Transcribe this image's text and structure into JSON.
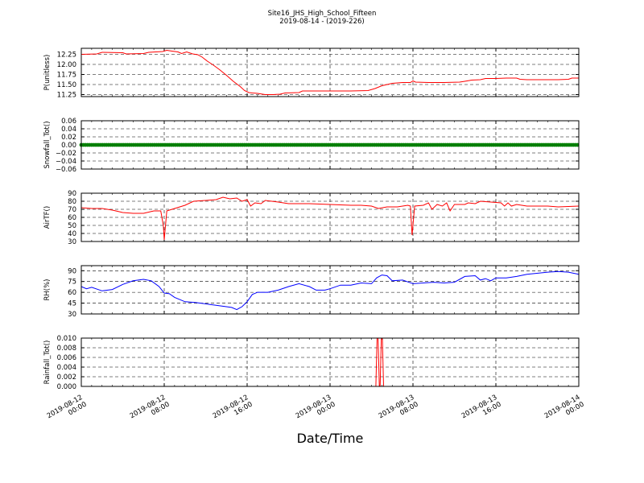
{
  "title": {
    "line1": "Site16_JHS_High_School_Fifteen",
    "line2": "2019-08-14 - (2019-226)"
  },
  "chart_data": {
    "type": "line",
    "xlabel": "Date/Time",
    "xlim": [
      "2019-08-12 00:00",
      "2019-08-14 00:00"
    ],
    "x_ticks": [
      {
        "value": "2019-08-12 00:00",
        "lines": [
          "2019-08-12",
          "00:00"
        ]
      },
      {
        "value": "2019-08-12 08:00",
        "lines": [
          "2019-08-12",
          "08:00"
        ]
      },
      {
        "value": "2019-08-12 16:00",
        "lines": [
          "2019-08-12",
          "16:00"
        ]
      },
      {
        "value": "2019-08-13 00:00",
        "lines": [
          "2019-08-13",
          "00:00"
        ]
      },
      {
        "value": "2019-08-13 08:00",
        "lines": [
          "2019-08-13",
          "08:00"
        ]
      },
      {
        "value": "2019-08-13 16:00",
        "lines": [
          "2019-08-13",
          "16:00"
        ]
      },
      {
        "value": "2019-08-14 00:00",
        "lines": [
          "2019-08-14",
          "00:00"
        ]
      }
    ],
    "grid": true,
    "panels": [
      {
        "ylabel": "P(unitless)",
        "ylim": [
          11.2,
          12.4
        ],
        "yticks": [
          12.25,
          12.0,
          11.75,
          11.5,
          11.25
        ],
        "ytick_labels": [
          "12.25",
          "12.00",
          "11.75",
          "11.50",
          "11.25"
        ],
        "color": "#ff0000",
        "marker": "line",
        "points": [
          [
            "2019-08-12 00:00",
            12.25
          ],
          [
            "2019-08-12 01:30",
            12.26
          ],
          [
            "2019-08-12 02:00",
            12.3
          ],
          [
            "2019-08-12 04:00",
            12.29
          ],
          [
            "2019-08-12 04:20",
            12.26
          ],
          [
            "2019-08-12 06:00",
            12.27
          ],
          [
            "2019-08-12 06:30",
            12.3
          ],
          [
            "2019-08-12 07:50",
            12.32
          ],
          [
            "2019-08-12 08:15",
            12.35
          ],
          [
            "2019-08-12 08:45",
            12.33
          ],
          [
            "2019-08-12 09:20",
            12.31
          ],
          [
            "2019-08-12 09:40",
            12.27
          ],
          [
            "2019-08-12 10:10",
            12.31
          ],
          [
            "2019-08-12 10:45",
            12.26
          ],
          [
            "2019-08-12 11:15",
            12.24
          ],
          [
            "2019-08-12 11:40",
            12.18
          ],
          [
            "2019-08-12 12:10",
            12.08
          ],
          [
            "2019-08-12 12:45",
            11.98
          ],
          [
            "2019-08-12 13:20",
            11.87
          ],
          [
            "2019-08-12 14:00",
            11.73
          ],
          [
            "2019-08-12 14:40",
            11.58
          ],
          [
            "2019-08-12 15:20",
            11.45
          ],
          [
            "2019-08-12 15:45",
            11.35
          ],
          [
            "2019-08-12 16:10",
            11.3
          ],
          [
            "2019-08-12 16:30",
            11.29
          ],
          [
            "2019-08-12 17:00",
            11.28
          ],
          [
            "2019-08-12 17:45",
            11.25
          ],
          [
            "2019-08-12 18:30",
            11.25
          ],
          [
            "2019-08-12 19:10",
            11.26
          ],
          [
            "2019-08-12 19:40",
            11.29
          ],
          [
            "2019-08-12 21:00",
            11.3
          ],
          [
            "2019-08-12 21:20",
            11.34
          ],
          [
            "2019-08-12 23:00",
            11.34
          ],
          [
            "2019-08-13 02:00",
            11.34
          ],
          [
            "2019-08-13 03:40",
            11.35
          ],
          [
            "2019-08-13 04:20",
            11.4
          ],
          [
            "2019-08-13 05:00",
            11.47
          ],
          [
            "2019-08-13 05:40",
            11.51
          ],
          [
            "2019-08-13 06:00",
            11.53
          ],
          [
            "2019-08-13 07:00",
            11.55
          ],
          [
            "2019-08-13 07:45",
            11.55
          ],
          [
            "2019-08-13 08:00",
            11.59
          ],
          [
            "2019-08-13 08:15",
            11.56
          ],
          [
            "2019-08-13 09:30",
            11.55
          ],
          [
            "2019-08-13 11:00",
            11.55
          ],
          [
            "2019-08-13 12:30",
            11.56
          ],
          [
            "2019-08-13 13:00",
            11.58
          ],
          [
            "2019-08-13 13:40",
            11.61
          ],
          [
            "2019-08-13 14:30",
            11.62
          ],
          [
            "2019-08-13 15:00",
            11.65
          ],
          [
            "2019-08-13 16:00",
            11.65
          ],
          [
            "2019-08-13 17:00",
            11.66
          ],
          [
            "2019-08-13 18:00",
            11.66
          ],
          [
            "2019-08-13 18:20",
            11.63
          ],
          [
            "2019-08-13 19:00",
            11.62
          ],
          [
            "2019-08-13 21:00",
            11.62
          ],
          [
            "2019-08-13 22:00",
            11.62
          ],
          [
            "2019-08-13 23:00",
            11.63
          ],
          [
            "2019-08-13 23:20",
            11.66
          ],
          [
            "2019-08-14 00:00",
            11.66
          ]
        ]
      },
      {
        "ylabel": "Snowfall_Tot()",
        "ylim": [
          -0.06,
          0.06
        ],
        "yticks": [
          0.06,
          0.04,
          0.02,
          0.0,
          -0.02,
          -0.04,
          -0.06
        ],
        "ytick_labels": [
          "0.06",
          "0.04",
          "0.02",
          "0.00",
          "−0.02",
          "−0.04",
          "−0.06"
        ],
        "color": "#007f00",
        "marker": "dots",
        "points": [
          [
            "2019-08-12 00:00",
            0.0
          ],
          [
            "2019-08-14 00:00",
            0.0
          ]
        ]
      },
      {
        "ylabel": "AirTF()",
        "ylim": [
          30,
          90
        ],
        "yticks": [
          90,
          80,
          70,
          60,
          50,
          40,
          30
        ],
        "ytick_labels": [
          "90",
          "80",
          "70",
          "60",
          "50",
          "40",
          "30"
        ],
        "color": "#ff0000",
        "marker": "line",
        "points": [
          [
            "2019-08-12 00:00",
            72
          ],
          [
            "2019-08-12 01:00",
            71
          ],
          [
            "2019-08-12 02:00",
            71
          ],
          [
            "2019-08-12 03:00",
            69
          ],
          [
            "2019-08-12 04:00",
            66
          ],
          [
            "2019-08-12 05:00",
            65
          ],
          [
            "2019-08-12 06:00",
            65
          ],
          [
            "2019-08-12 07:00",
            68
          ],
          [
            "2019-08-12 07:40",
            68
          ],
          [
            "2019-08-12 07:55",
            50
          ],
          [
            "2019-08-12 08:00",
            32
          ],
          [
            "2019-08-12 08:15",
            68
          ],
          [
            "2019-08-12 09:00",
            71
          ],
          [
            "2019-08-12 10:00",
            75
          ],
          [
            "2019-08-12 10:50",
            80
          ],
          [
            "2019-08-12 12:00",
            81
          ],
          [
            "2019-08-12 13:00",
            82
          ],
          [
            "2019-08-12 13:40",
            85
          ],
          [
            "2019-08-12 14:20",
            83
          ],
          [
            "2019-08-12 15:00",
            84
          ],
          [
            "2019-08-12 15:30",
            80
          ],
          [
            "2019-08-12 16:00",
            82
          ],
          [
            "2019-08-12 16:20",
            74
          ],
          [
            "2019-08-12 16:45",
            78
          ],
          [
            "2019-08-12 17:20",
            77
          ],
          [
            "2019-08-12 17:45",
            81
          ],
          [
            "2019-08-12 19:00",
            79
          ],
          [
            "2019-08-12 20:00",
            77
          ],
          [
            "2019-08-12 22:00",
            77
          ],
          [
            "2019-08-13 00:00",
            76
          ],
          [
            "2019-08-13 02:00",
            75
          ],
          [
            "2019-08-13 03:00",
            75
          ],
          [
            "2019-08-13 04:00",
            74
          ],
          [
            "2019-08-13 04:40",
            71
          ],
          [
            "2019-08-13 05:30",
            73
          ],
          [
            "2019-08-13 06:30",
            73
          ],
          [
            "2019-08-13 07:30",
            75
          ],
          [
            "2019-08-13 07:45",
            74
          ],
          [
            "2019-08-13 07:55",
            38
          ],
          [
            "2019-08-13 08:10",
            74
          ],
          [
            "2019-08-13 09:00",
            75
          ],
          [
            "2019-08-13 09:30",
            78
          ],
          [
            "2019-08-13 09:50",
            70
          ],
          [
            "2019-08-13 10:20",
            76
          ],
          [
            "2019-08-13 10:50",
            74
          ],
          [
            "2019-08-13 11:15",
            78
          ],
          [
            "2019-08-13 11:35",
            68
          ],
          [
            "2019-08-13 12:00",
            76
          ],
          [
            "2019-08-13 13:00",
            76
          ],
          [
            "2019-08-13 13:20",
            78
          ],
          [
            "2019-08-13 14:00",
            77
          ],
          [
            "2019-08-13 14:30",
            80
          ],
          [
            "2019-08-13 15:30",
            79
          ],
          [
            "2019-08-13 16:30",
            78
          ],
          [
            "2019-08-13 16:50",
            74
          ],
          [
            "2019-08-13 17:10",
            78
          ],
          [
            "2019-08-13 17:30",
            74
          ],
          [
            "2019-08-13 18:00",
            76
          ],
          [
            "2019-08-13 19:00",
            74
          ],
          [
            "2019-08-13 21:00",
            74
          ],
          [
            "2019-08-13 22:00",
            73
          ],
          [
            "2019-08-14 00:00",
            74
          ]
        ]
      },
      {
        "ylabel": "RH(%)",
        "ylim": [
          30,
          97
        ],
        "yticks": [
          90,
          75,
          60,
          45,
          30
        ],
        "ytick_labels": [
          "90",
          "75",
          "60",
          "45",
          "30"
        ],
        "color": "#0000ff",
        "marker": "line",
        "points": [
          [
            "2019-08-12 00:00",
            68
          ],
          [
            "2019-08-12 00:30",
            65
          ],
          [
            "2019-08-12 01:00",
            67
          ],
          [
            "2019-08-12 02:00",
            62
          ],
          [
            "2019-08-12 03:00",
            64
          ],
          [
            "2019-08-12 04:00",
            71
          ],
          [
            "2019-08-12 05:00",
            76
          ],
          [
            "2019-08-12 06:00",
            78
          ],
          [
            "2019-08-12 06:45",
            76
          ],
          [
            "2019-08-12 07:30",
            68
          ],
          [
            "2019-08-12 08:00",
            59
          ],
          [
            "2019-08-12 08:30",
            58
          ],
          [
            "2019-08-12 09:00",
            53
          ],
          [
            "2019-08-12 10:00",
            47
          ],
          [
            "2019-08-12 11:00",
            46
          ],
          [
            "2019-08-12 12:00",
            44
          ],
          [
            "2019-08-12 13:00",
            42
          ],
          [
            "2019-08-12 14:00",
            40
          ],
          [
            "2019-08-12 14:30",
            39
          ],
          [
            "2019-08-12 15:00",
            36
          ],
          [
            "2019-08-12 15:30",
            40
          ],
          [
            "2019-08-12 16:00",
            47
          ],
          [
            "2019-08-12 16:30",
            57
          ],
          [
            "2019-08-12 17:00",
            60
          ],
          [
            "2019-08-12 18:00",
            60
          ],
          [
            "2019-08-12 19:00",
            63
          ],
          [
            "2019-08-12 20:00",
            68
          ],
          [
            "2019-08-12 21:00",
            72
          ],
          [
            "2019-08-12 22:00",
            68
          ],
          [
            "2019-08-12 22:40",
            63
          ],
          [
            "2019-08-12 23:30",
            63
          ],
          [
            "2019-08-13 00:00",
            65
          ],
          [
            "2019-08-13 01:00",
            70
          ],
          [
            "2019-08-13 02:00",
            70
          ],
          [
            "2019-08-13 03:00",
            73
          ],
          [
            "2019-08-13 04:00",
            72
          ],
          [
            "2019-08-13 04:30",
            80
          ],
          [
            "2019-08-13 05:00",
            84
          ],
          [
            "2019-08-13 05:30",
            83
          ],
          [
            "2019-08-13 06:00",
            76
          ],
          [
            "2019-08-13 07:00",
            77
          ],
          [
            "2019-08-13 08:00",
            72
          ],
          [
            "2019-08-13 09:00",
            73
          ],
          [
            "2019-08-13 10:00",
            74
          ],
          [
            "2019-08-13 11:00",
            73
          ],
          [
            "2019-08-13 12:00",
            74
          ],
          [
            "2019-08-13 13:00",
            82
          ],
          [
            "2019-08-13 14:00",
            83
          ],
          [
            "2019-08-13 14:30",
            77
          ],
          [
            "2019-08-13 15:00",
            79
          ],
          [
            "2019-08-13 15:30",
            76
          ],
          [
            "2019-08-13 16:00",
            80
          ],
          [
            "2019-08-13 17:00",
            80
          ],
          [
            "2019-08-13 18:00",
            82
          ],
          [
            "2019-08-13 19:00",
            85
          ],
          [
            "2019-08-13 21:00",
            88
          ],
          [
            "2019-08-13 22:00",
            89
          ],
          [
            "2019-08-13 23:00",
            88
          ],
          [
            "2019-08-14 00:00",
            85
          ]
        ]
      },
      {
        "ylabel": "Rainfall_Tot()",
        "ylim": [
          0,
          0.01
        ],
        "yticks": [
          0.01,
          0.008,
          0.006,
          0.004,
          0.002,
          0.0
        ],
        "ytick_labels": [
          "0.010",
          "0.008",
          "0.006",
          "0.004",
          "0.002",
          "0.000"
        ],
        "color": "#ff0000",
        "marker": "line",
        "points": [
          [
            "2019-08-12 00:00",
            0
          ],
          [
            "2019-08-13 04:25",
            0
          ],
          [
            "2019-08-13 04:32",
            0.01
          ],
          [
            "2019-08-13 04:38",
            0.01
          ],
          [
            "2019-08-13 04:45",
            0
          ],
          [
            "2019-08-13 04:50",
            0
          ],
          [
            "2019-08-13 04:57",
            0.01
          ],
          [
            "2019-08-13 05:03",
            0.01
          ],
          [
            "2019-08-13 05:10",
            0
          ],
          [
            "2019-08-14 00:00",
            0
          ]
        ]
      }
    ]
  }
}
